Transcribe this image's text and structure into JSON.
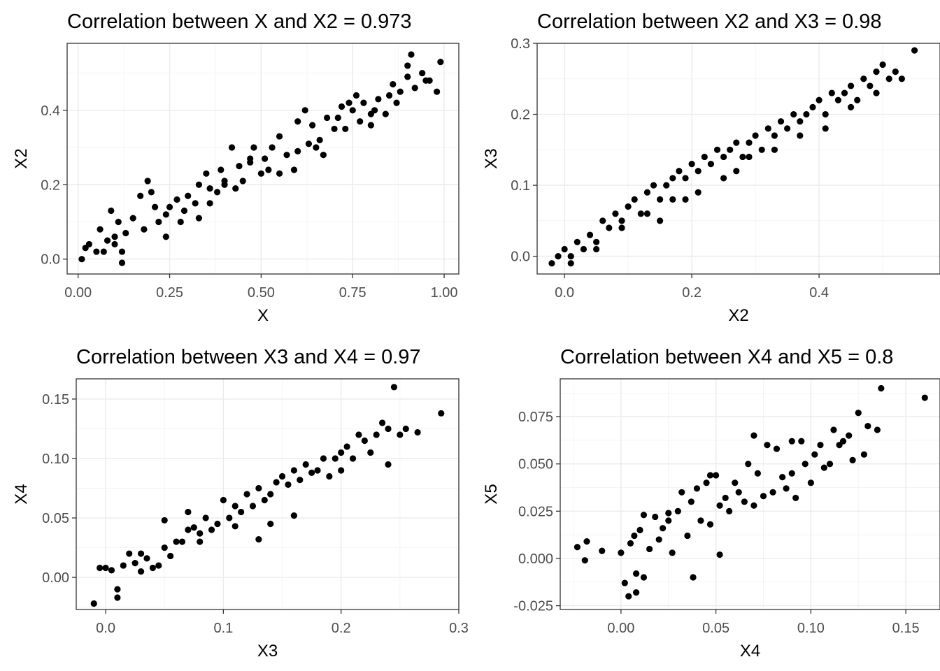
{
  "chart_data": [
    {
      "type": "scatter",
      "title": "Correlation between X and X2 = 0.973",
      "xlabel": "X",
      "ylabel": "X2",
      "xlim": [
        -0.03,
        1.04
      ],
      "ylim": [
        -0.04,
        0.58
      ],
      "xticks": [
        0,
        0.25,
        0.5,
        0.75,
        1
      ],
      "xtick_labels": [
        "0.00",
        "0.25",
        "0.50",
        "0.75",
        "1.00"
      ],
      "yticks": [
        0,
        0.2,
        0.4
      ],
      "ytick_labels": [
        "0.0",
        "0.2",
        "0.4"
      ],
      "x": [
        0.01,
        0.02,
        0.03,
        0.05,
        0.06,
        0.07,
        0.08,
        0.09,
        0.1,
        0.11,
        0.12,
        0.13,
        0.15,
        0.17,
        0.18,
        0.2,
        0.21,
        0.22,
        0.24,
        0.25,
        0.27,
        0.28,
        0.29,
        0.3,
        0.32,
        0.33,
        0.35,
        0.36,
        0.38,
        0.39,
        0.4,
        0.42,
        0.43,
        0.44,
        0.45,
        0.47,
        0.48,
        0.5,
        0.51,
        0.52,
        0.53,
        0.55,
        0.57,
        0.59,
        0.6,
        0.62,
        0.63,
        0.64,
        0.65,
        0.67,
        0.68,
        0.7,
        0.71,
        0.72,
        0.73,
        0.75,
        0.76,
        0.77,
        0.78,
        0.8,
        0.81,
        0.82,
        0.84,
        0.85,
        0.86,
        0.87,
        0.88,
        0.9,
        0.91,
        0.92,
        0.94,
        0.95,
        0.96,
        0.98,
        0.99,
        0.12,
        0.1,
        0.19,
        0.24,
        0.36,
        0.4,
        0.55,
        0.6,
        0.66,
        0.74,
        0.8,
        0.9,
        0.33,
        0.47
      ],
      "y": [
        0.0,
        0.03,
        0.04,
        0.02,
        0.08,
        0.02,
        0.05,
        0.13,
        0.06,
        0.1,
        -0.01,
        0.07,
        0.11,
        0.17,
        0.08,
        0.18,
        0.14,
        0.1,
        0.06,
        0.14,
        0.16,
        0.1,
        0.13,
        0.17,
        0.15,
        0.2,
        0.23,
        0.19,
        0.18,
        0.24,
        0.21,
        0.3,
        0.19,
        0.25,
        0.21,
        0.26,
        0.3,
        0.23,
        0.27,
        0.24,
        0.3,
        0.23,
        0.28,
        0.24,
        0.37,
        0.4,
        0.31,
        0.36,
        0.3,
        0.28,
        0.38,
        0.35,
        0.38,
        0.41,
        0.35,
        0.4,
        0.44,
        0.37,
        0.42,
        0.39,
        0.4,
        0.43,
        0.39,
        0.44,
        0.47,
        0.42,
        0.45,
        0.49,
        0.55,
        0.46,
        0.5,
        0.48,
        0.48,
        0.45,
        0.53,
        0.02,
        0.04,
        0.21,
        0.12,
        0.15,
        0.2,
        0.33,
        0.29,
        0.32,
        0.42,
        0.36,
        0.52,
        0.11,
        0.27
      ]
    },
    {
      "type": "scatter",
      "title": "Correlation between X2 and X3 = 0.98",
      "xlabel": "X2",
      "ylabel": "X3",
      "xlim": [
        -0.043,
        0.59
      ],
      "ylim": [
        -0.025,
        0.3
      ],
      "xticks": [
        0,
        0.2,
        0.4
      ],
      "xtick_labels": [
        "0.0",
        "0.2",
        "0.4"
      ],
      "yticks": [
        0,
        0.1,
        0.2,
        0.3
      ],
      "ytick_labels": [
        "0.0",
        "0.1",
        "0.2",
        "0.3"
      ],
      "x": [
        -0.02,
        -0.01,
        0.0,
        0.01,
        0.02,
        0.03,
        0.04,
        0.05,
        0.06,
        0.07,
        0.08,
        0.09,
        0.1,
        0.11,
        0.12,
        0.13,
        0.14,
        0.15,
        0.16,
        0.17,
        0.18,
        0.19,
        0.2,
        0.21,
        0.22,
        0.23,
        0.24,
        0.25,
        0.26,
        0.27,
        0.28,
        0.29,
        0.3,
        0.31,
        0.32,
        0.33,
        0.34,
        0.35,
        0.36,
        0.37,
        0.38,
        0.39,
        0.4,
        0.41,
        0.42,
        0.43,
        0.44,
        0.45,
        0.46,
        0.47,
        0.48,
        0.49,
        0.5,
        0.51,
        0.52,
        0.53,
        0.55,
        0.01,
        0.05,
        0.09,
        0.13,
        0.17,
        0.21,
        0.25,
        0.29,
        0.33,
        0.37,
        0.41,
        0.45,
        0.49,
        0.15,
        0.19,
        0.27
      ],
      "y": [
        -0.01,
        0.0,
        0.01,
        0.0,
        0.02,
        0.01,
        0.03,
        0.02,
        0.05,
        0.04,
        0.06,
        0.05,
        0.07,
        0.08,
        0.06,
        0.09,
        0.1,
        0.08,
        0.1,
        0.11,
        0.12,
        0.11,
        0.13,
        0.12,
        0.14,
        0.13,
        0.15,
        0.14,
        0.15,
        0.16,
        0.14,
        0.16,
        0.17,
        0.15,
        0.18,
        0.17,
        0.19,
        0.18,
        0.2,
        0.19,
        0.2,
        0.21,
        0.22,
        0.2,
        0.23,
        0.22,
        0.23,
        0.24,
        0.22,
        0.25,
        0.24,
        0.26,
        0.27,
        0.25,
        0.26,
        0.25,
        0.29,
        -0.01,
        0.01,
        0.04,
        0.06,
        0.08,
        0.09,
        0.11,
        0.14,
        0.15,
        0.17,
        0.18,
        0.21,
        0.23,
        0.05,
        0.08,
        0.12
      ]
    },
    {
      "type": "scatter",
      "title": "Correlation between X3 and X4 = 0.97",
      "xlabel": "X3",
      "ylabel": "X4",
      "xlim": [
        -0.025,
        0.3
      ],
      "ylim": [
        -0.027,
        0.167
      ],
      "xticks": [
        0,
        0.1,
        0.2,
        0.3
      ],
      "xtick_labels": [
        "0.0",
        "0.1",
        "0.2",
        "0.3"
      ],
      "yticks": [
        0,
        0.05,
        0.1,
        0.15
      ],
      "ytick_labels": [
        "0.00",
        "0.05",
        "0.10",
        "0.15"
      ],
      "x": [
        -0.01,
        -0.005,
        0.0,
        0.005,
        0.01,
        0.015,
        0.02,
        0.025,
        0.03,
        0.035,
        0.04,
        0.045,
        0.05,
        0.055,
        0.06,
        0.065,
        0.07,
        0.075,
        0.08,
        0.085,
        0.09,
        0.095,
        0.1,
        0.105,
        0.11,
        0.115,
        0.12,
        0.125,
        0.13,
        0.135,
        0.14,
        0.145,
        0.15,
        0.155,
        0.16,
        0.165,
        0.17,
        0.175,
        0.18,
        0.185,
        0.19,
        0.195,
        0.2,
        0.205,
        0.21,
        0.215,
        0.22,
        0.225,
        0.23,
        0.235,
        0.24,
        0.245,
        0.25,
        0.255,
        0.265,
        0.285,
        0.01,
        0.05,
        0.08,
        0.13,
        0.16,
        0.2,
        0.24,
        0.14,
        0.07,
        0.03,
        0.11
      ],
      "y": [
        -0.022,
        0.008,
        0.008,
        0.006,
        -0.01,
        0.01,
        0.02,
        0.012,
        0.005,
        0.016,
        0.008,
        0.01,
        0.025,
        0.018,
        0.03,
        0.03,
        0.04,
        0.042,
        0.037,
        0.05,
        0.04,
        0.045,
        0.065,
        0.05,
        0.06,
        0.055,
        0.07,
        0.06,
        0.075,
        0.065,
        0.07,
        0.08,
        0.085,
        0.078,
        0.09,
        0.082,
        0.095,
        0.088,
        0.09,
        0.1,
        0.085,
        0.1,
        0.105,
        0.11,
        0.1,
        0.12,
        0.115,
        0.105,
        0.12,
        0.13,
        0.125,
        0.16,
        0.12,
        0.125,
        0.122,
        0.138,
        -0.017,
        0.048,
        0.03,
        0.032,
        0.052,
        0.09,
        0.095,
        0.045,
        0.055,
        0.02,
        0.043
      ]
    },
    {
      "type": "scatter",
      "title": "Correlation between X4 and X5 = 0.8",
      "xlabel": "X4",
      "ylabel": "X5",
      "xlim": [
        -0.032,
        0.168
      ],
      "ylim": [
        -0.027,
        0.095
      ],
      "xticks": [
        0,
        0.05,
        0.1,
        0.15
      ],
      "xtick_labels": [
        "0.00",
        "0.05",
        "0.10",
        "0.15"
      ],
      "yticks": [
        -0.025,
        0,
        0.025,
        0.05,
        0.075
      ],
      "ytick_labels": [
        "-0.025",
        "0.000",
        "0.025",
        "0.050",
        "0.075"
      ],
      "x": [
        -0.023,
        -0.019,
        -0.018,
        -0.01,
        0.0,
        0.002,
        0.004,
        0.005,
        0.007,
        0.008,
        0.01,
        0.012,
        0.015,
        0.018,
        0.02,
        0.022,
        0.025,
        0.027,
        0.03,
        0.032,
        0.035,
        0.037,
        0.04,
        0.042,
        0.045,
        0.047,
        0.05,
        0.052,
        0.055,
        0.057,
        0.06,
        0.062,
        0.065,
        0.067,
        0.07,
        0.072,
        0.075,
        0.077,
        0.08,
        0.082,
        0.085,
        0.087,
        0.09,
        0.092,
        0.095,
        0.097,
        0.1,
        0.102,
        0.105,
        0.107,
        0.11,
        0.112,
        0.115,
        0.117,
        0.12,
        0.122,
        0.125,
        0.128,
        0.13,
        0.135,
        0.137,
        0.16,
        0.038,
        0.012,
        0.052,
        0.047,
        0.07,
        0.09,
        0.025,
        0.008
      ],
      "y": [
        0.006,
        -0.001,
        0.009,
        0.004,
        0.003,
        -0.013,
        -0.02,
        0.008,
        0.012,
        -0.008,
        0.015,
        0.023,
        0.005,
        0.022,
        0.01,
        0.016,
        0.02,
        0.003,
        0.025,
        0.035,
        0.012,
        0.03,
        0.037,
        0.02,
        0.04,
        0.018,
        0.044,
        0.028,
        0.032,
        0.025,
        0.04,
        0.035,
        0.03,
        0.05,
        0.028,
        0.045,
        0.033,
        0.06,
        0.035,
        0.058,
        0.043,
        0.037,
        0.045,
        0.032,
        0.062,
        0.05,
        0.04,
        0.055,
        0.06,
        0.048,
        0.05,
        0.068,
        0.06,
        0.062,
        0.065,
        0.052,
        0.077,
        0.055,
        0.07,
        0.068,
        0.09,
        0.085,
        -0.01,
        -0.01,
        0.002,
        0.044,
        0.065,
        0.062,
        0.024,
        -0.018
      ]
    }
  ]
}
